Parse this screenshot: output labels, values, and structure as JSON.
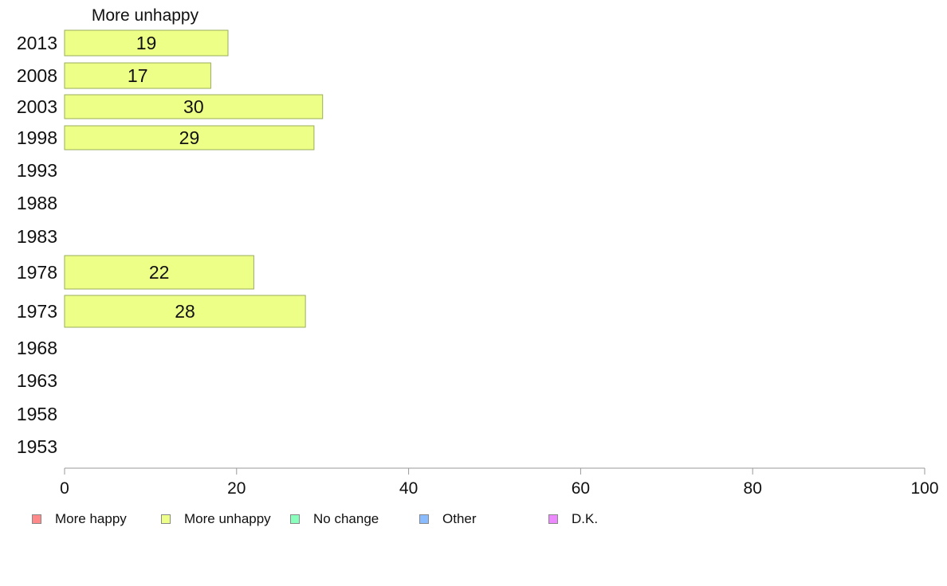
{
  "chart_data": {
    "type": "bar",
    "orientation": "horizontal",
    "title": "More unhappy",
    "categories": [
      "2013",
      "2008",
      "2003",
      "1998",
      "1993",
      "1988",
      "1983",
      "1978",
      "1973",
      "1968",
      "1963",
      "1958",
      "1953"
    ],
    "series": [
      {
        "name": "More unhappy",
        "color": "#eeff88",
        "values": [
          19,
          17,
          30,
          29,
          null,
          null,
          null,
          22,
          28,
          null,
          null,
          null,
          null
        ]
      }
    ],
    "xlim": [
      0,
      100
    ],
    "xticks": [
      0,
      20,
      40,
      60,
      80,
      100
    ],
    "grid": false,
    "legend": {
      "placement": "bottom",
      "entries": [
        {
          "label": "More happy",
          "color": "#ff8888"
        },
        {
          "label": "More unhappy",
          "color": "#eeff88"
        },
        {
          "label": "No change",
          "color": "#88ffbb"
        },
        {
          "label": "Other",
          "color": "#88bbff"
        },
        {
          "label": "D.K.",
          "color": "#ee88ff"
        }
      ]
    }
  }
}
